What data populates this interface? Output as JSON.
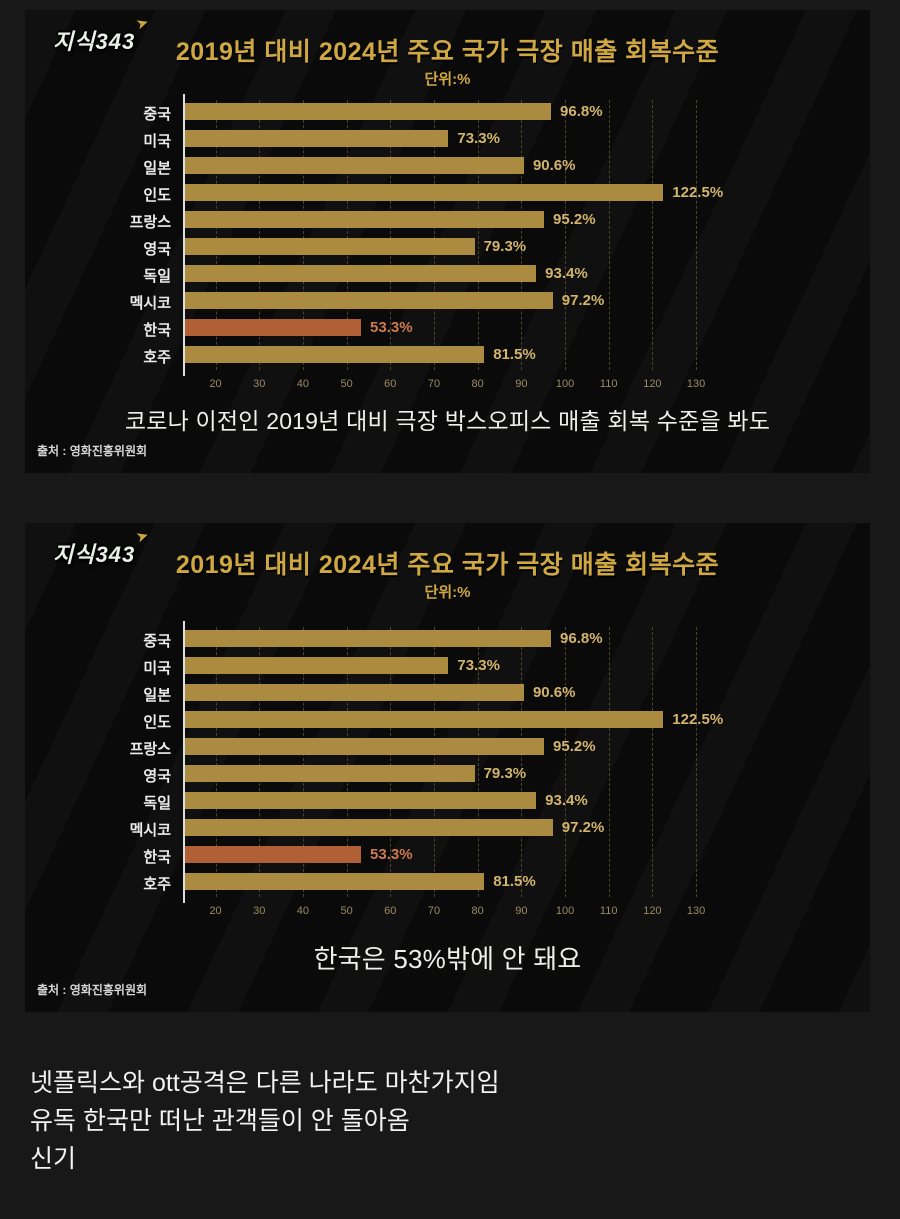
{
  "page": {
    "background": "#181818",
    "card_background": "#0a0a0a"
  },
  "chart_data": [
    {
      "type": "bar",
      "logo_text": "지식343",
      "title": "2019년 대비 2024년 주요 국가 극장 매출 회복수준",
      "unit_label": "단위:%",
      "categories": [
        "중국",
        "미국",
        "일본",
        "인도",
        "프랑스",
        "영국",
        "독일",
        "멕시코",
        "한국",
        "호주"
      ],
      "values": [
        96.8,
        73.3,
        90.6,
        122.5,
        95.2,
        79.3,
        93.4,
        97.2,
        53.3,
        81.5
      ],
      "value_labels": [
        "96.8%",
        "73.3%",
        "90.6%",
        "122.5%",
        "95.2%",
        "79.3%",
        "93.4%",
        "97.2%",
        "53.3%",
        "81.5%"
      ],
      "highlight_index": 8,
      "x_ticks": [
        20,
        30,
        40,
        50,
        60,
        70,
        80,
        90,
        100,
        110,
        120,
        130
      ],
      "xlim": [
        13,
        138
      ],
      "bar_color": "#ab8b3f",
      "highlight_bar_color": "#b15f35",
      "value_color": "#d2b46c",
      "highlight_value_color": "#cb7a50",
      "title_color": "#cfa843",
      "caption": "코로나 이전인 2019년 대비 극장 박스오피스 매출 회복 수준을 봐도",
      "source": "출처 : 영화진흥위원회"
    },
    {
      "type": "bar",
      "logo_text": "지식343",
      "title": "2019년 대비 2024년 주요 국가 극장 매출 회복수준",
      "unit_label": "단위:%",
      "categories": [
        "중국",
        "미국",
        "일본",
        "인도",
        "프랑스",
        "영국",
        "독일",
        "멕시코",
        "한국",
        "호주"
      ],
      "values": [
        96.8,
        73.3,
        90.6,
        122.5,
        95.2,
        79.3,
        93.4,
        97.2,
        53.3,
        81.5
      ],
      "value_labels": [
        "96.8%",
        "73.3%",
        "90.6%",
        "122.5%",
        "95.2%",
        "79.3%",
        "93.4%",
        "97.2%",
        "53.3%",
        "81.5%"
      ],
      "highlight_index": 8,
      "x_ticks": [
        20,
        30,
        40,
        50,
        60,
        70,
        80,
        90,
        100,
        110,
        120,
        130
      ],
      "xlim": [
        13,
        138
      ],
      "bar_color": "#ab8b3f",
      "highlight_bar_color": "#b15f35",
      "value_color": "#d2b46c",
      "highlight_value_color": "#cb7a50",
      "title_color": "#cfa843",
      "caption": "한국은 53%밖에 안 돼요",
      "source": "출처 : 영화진흥위원회"
    }
  ],
  "comments": {
    "lines": [
      "넷플릭스와 ott공격은 다른 나라도 마찬가지임",
      "유독 한국만 떠난 관객들이 안 돌아옴",
      "신기"
    ]
  }
}
